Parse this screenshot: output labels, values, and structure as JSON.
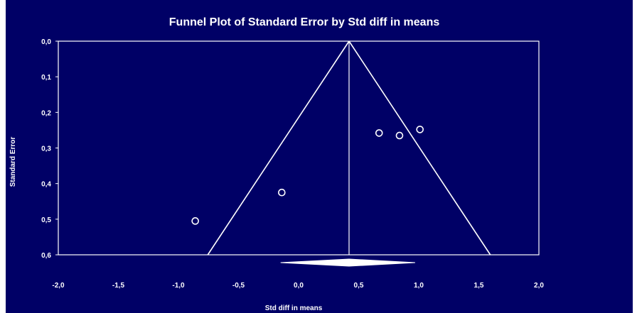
{
  "chart_data": {
    "type": "scatter",
    "title": "Funnel Plot of Standard Error by Std diff in means",
    "xlabel": "Std diff in means",
    "ylabel": "Standard Error",
    "xlim": [
      -2.0,
      2.0
    ],
    "ylim": [
      0.0,
      0.6
    ],
    "y_reversed": true,
    "x_ticks": [
      "-2,0",
      "-1,5",
      "-1,0",
      "-0,5",
      "0,0",
      "0,5",
      "1,0",
      "1,5",
      "2,0"
    ],
    "x_tick_values": [
      -2.0,
      -1.5,
      -1.0,
      -0.5,
      0.0,
      0.5,
      1.0,
      1.5,
      2.0
    ],
    "y_ticks": [
      "0,0",
      "0,1",
      "0,2",
      "0,3",
      "0,4",
      "0,5",
      "0,6"
    ],
    "y_tick_values": [
      0.0,
      0.1,
      0.2,
      0.3,
      0.4,
      0.5,
      0.6
    ],
    "grid": false,
    "summary_effect": 0.42,
    "summary_ci": [
      -0.15,
      0.97
    ],
    "points": [
      {
        "x": -0.86,
        "y": 0.505
      },
      {
        "x": -0.14,
        "y": 0.425
      },
      {
        "x": 0.67,
        "y": 0.258
      },
      {
        "x": 0.84,
        "y": 0.265
      },
      {
        "x": 1.01,
        "y": 0.248
      }
    ],
    "colors": {
      "background": "#000066",
      "foreground": "#ffffff"
    }
  }
}
